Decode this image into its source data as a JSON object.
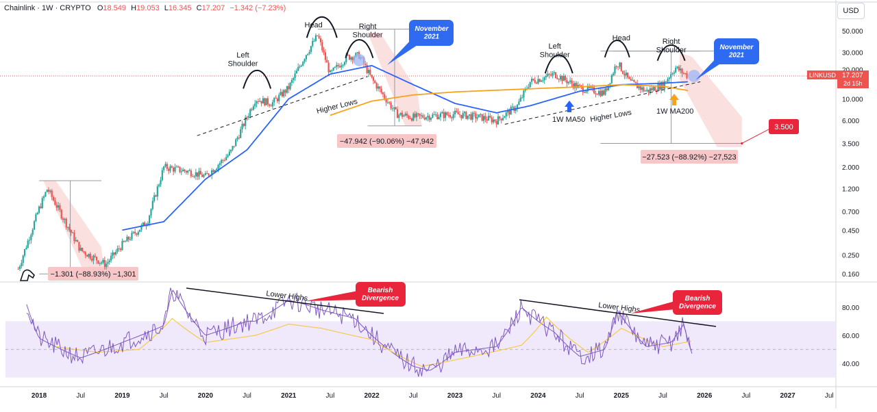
{
  "header": {
    "symbol": "Chainlink · 1W · CRYPTO",
    "o_label": "O",
    "o": "18.549",
    "h_label": "H",
    "h": "19.053",
    "l_label": "L",
    "l": "16.345",
    "c_label": "C",
    "c": "17.207",
    "change": "−1.342 (−7.23%)"
  },
  "currency": "USD",
  "price_axis": {
    "ticks": [
      "50.000",
      "30.000",
      "20.000",
      "10.000",
      "6.000",
      "3.500",
      "2.000",
      "1.200",
      "0.700",
      "0.450",
      "0.250",
      "0.160"
    ],
    "tick_values": [
      50,
      30,
      20,
      10,
      6,
      3.5,
      2,
      1.2,
      0.7,
      0.45,
      0.25,
      0.16
    ],
    "scale": "log"
  },
  "price_tag": {
    "ticker": "LINKUSD",
    "price": "17.207",
    "countdown": "2d 15h"
  },
  "rsi_axis": {
    "ticks": [
      "80.00",
      "60.00",
      "40.00"
    ],
    "tick_values": [
      80,
      60,
      40
    ]
  },
  "time_axis": {
    "labels": [
      "2018",
      "Jul",
      "2019",
      "Jul",
      "2020",
      "Jul",
      "2021",
      "Jul",
      "2022",
      "Jul",
      "2023",
      "Jul",
      "2024",
      "Jul",
      "2025",
      "Jul",
      "2026",
      "Jul",
      "2027",
      "Jul"
    ],
    "years": [
      2018,
      2018.5,
      2019,
      2019.5,
      2020,
      2020.5,
      2021,
      2021.5,
      2022,
      2022.5,
      2023,
      2023.5,
      2024,
      2024.5,
      2025,
      2025.5,
      2026,
      2026.5,
      2027,
      2027.5
    ],
    "bold": [
      true,
      false,
      true,
      false,
      true,
      false,
      true,
      false,
      true,
      false,
      true,
      false,
      true,
      false,
      true,
      false,
      true,
      false,
      true,
      false
    ]
  },
  "annotations": {
    "left_shoulder_1": "Left\nShoulder",
    "head_1": "Head",
    "right_shoulder_1": "Right\nShoulder",
    "november_1": "November\n2021",
    "higher_lows_1": "Higher Lows",
    "drop_1": "−47.942 (−90.06%) −47,942",
    "left_shoulder_2": "Left\nShoulder",
    "head_2": "Head",
    "right_shoulder_2": "Right\nShoulder",
    "november_2": "November\n2021",
    "ma50": "1W MA50",
    "higher_lows_2": "Higher Lows",
    "ma200": "1W MA200",
    "drop_2": "−27.523 (−88.92%) −27,523",
    "target": "3.500",
    "drop_0": "−1.301 (−88.93%) −1,301",
    "lower_highs_1": "Lower Highs",
    "bearish_1": "Bearish\nDivergence",
    "lower_highs_2": "Lower Highs",
    "bearish_2": "Bearish\nDivergence"
  },
  "colors": {
    "up": "#26a69a",
    "down": "#ef5350",
    "ma50": "#2962ff",
    "ma200": "#f7a21b",
    "rsi": "#7e57c2",
    "rsi_ma": "#f7c948",
    "rsi_band": "#efe9fb",
    "callout": "#e8253a",
    "nov_bubble": "#2f6bf0"
  },
  "chart_data": [
    {
      "type": "candlestick",
      "title": "Chainlink · 1W · CRYPTO",
      "series": [
        {
          "name": "LINKUSD",
          "x": [
            2017.75,
            2018.0,
            2018.1,
            2018.5,
            2018.8,
            2019.0,
            2019.3,
            2019.5,
            2019.8,
            2020.0,
            2020.3,
            2020.6,
            2020.8,
            2021.0,
            2021.2,
            2021.35,
            2021.5,
            2021.7,
            2021.85,
            2022.0,
            2022.3,
            2022.5,
            2022.8,
            2023.0,
            2023.3,
            2023.5,
            2023.75,
            2023.9,
            2024.2,
            2024.5,
            2024.8,
            2024.95,
            2025.1,
            2025.3,
            2025.5,
            2025.65,
            2025.8
          ],
          "close": [
            0.18,
            0.75,
            1.2,
            0.28,
            0.2,
            0.32,
            0.55,
            2.0,
            1.8,
            1.6,
            2.8,
            10.0,
            9.0,
            13.0,
            28.0,
            45.0,
            18.0,
            27.0,
            28.0,
            16.0,
            7.0,
            6.5,
            6.8,
            7.0,
            6.5,
            6.0,
            8.5,
            15.0,
            18.0,
            13.0,
            11.5,
            24.0,
            15.0,
            12.0,
            14.0,
            21.0,
            17.207
          ]
        },
        {
          "name": "1W MA50",
          "x": [
            2019.0,
            2019.5,
            2020.0,
            2020.5,
            2021.0,
            2021.5,
            2022.0,
            2022.5,
            2023.0,
            2023.5,
            2023.9,
            2024.5,
            2025.0,
            2025.5,
            2025.8
          ],
          "y": [
            0.45,
            0.55,
            1.5,
            3.0,
            10.0,
            18.0,
            22.0,
            14.0,
            9.0,
            7.2,
            8.5,
            12.0,
            14.0,
            14.5,
            15.0
          ]
        },
        {
          "name": "1W MA200",
          "x": [
            2021.5,
            2022.0,
            2022.5,
            2023.0,
            2023.5,
            2024.0,
            2024.5,
            2025.0,
            2025.5,
            2025.8
          ],
          "y": [
            6.8,
            9.5,
            11.0,
            11.8,
            12.3,
            12.8,
            13.3,
            14.0,
            13.5,
            12.2
          ]
        }
      ],
      "measurements": [
        {
          "label": "−1.301 (−88.93%) −1,301",
          "from": 1.45,
          "to": 0.16
        },
        {
          "label": "−47.942 (−90.06%) −47,942",
          "from": 52.0,
          "to": 5.3
        },
        {
          "label": "−27.523 (−88.92%) −27,523",
          "from": 31.0,
          "to": 3.5
        }
      ],
      "target": 3.5,
      "last_price": 17.207,
      "ylim": [
        0.12,
        75
      ],
      "xlim": [
        2017.53,
        2027.58
      ],
      "yscale": "log",
      "grid": false
    },
    {
      "type": "line",
      "title": "",
      "series": [
        {
          "name": "RSI",
          "x": [
            2017.85,
            2018.0,
            2018.5,
            2019.0,
            2019.5,
            2019.6,
            2020.0,
            2020.5,
            2020.6,
            2021.0,
            2021.2,
            2021.4,
            2021.8,
            2022.0,
            2022.5,
            2022.7,
            2023.0,
            2023.5,
            2023.8,
            2024.0,
            2024.2,
            2024.5,
            2024.8,
            2024.95,
            2025.3,
            2025.6,
            2025.75,
            2025.85
          ],
          "y": [
            82,
            58,
            44,
            55,
            67,
            93,
            60,
            70,
            70,
            85,
            82,
            78,
            72,
            60,
            38,
            35,
            48,
            52,
            80,
            70,
            62,
            45,
            50,
            78,
            52,
            55,
            68,
            47
          ]
        },
        {
          "name": "RSI MA",
          "x": [
            2018.2,
            2018.7,
            2019.2,
            2019.6,
            2020.0,
            2020.6,
            2021.0,
            2021.4,
            2022.0,
            2022.6,
            2023.2,
            2023.8,
            2024.1,
            2024.6,
            2025.0,
            2025.5,
            2025.85
          ],
          "y": [
            52,
            48,
            50,
            72,
            55,
            60,
            68,
            65,
            57,
            38,
            45,
            53,
            73,
            48,
            65,
            52,
            56
          ]
        }
      ],
      "bands": [
        30,
        70
      ],
      "midline": 50,
      "ylim": [
        25,
        95
      ],
      "grid": false
    }
  ]
}
